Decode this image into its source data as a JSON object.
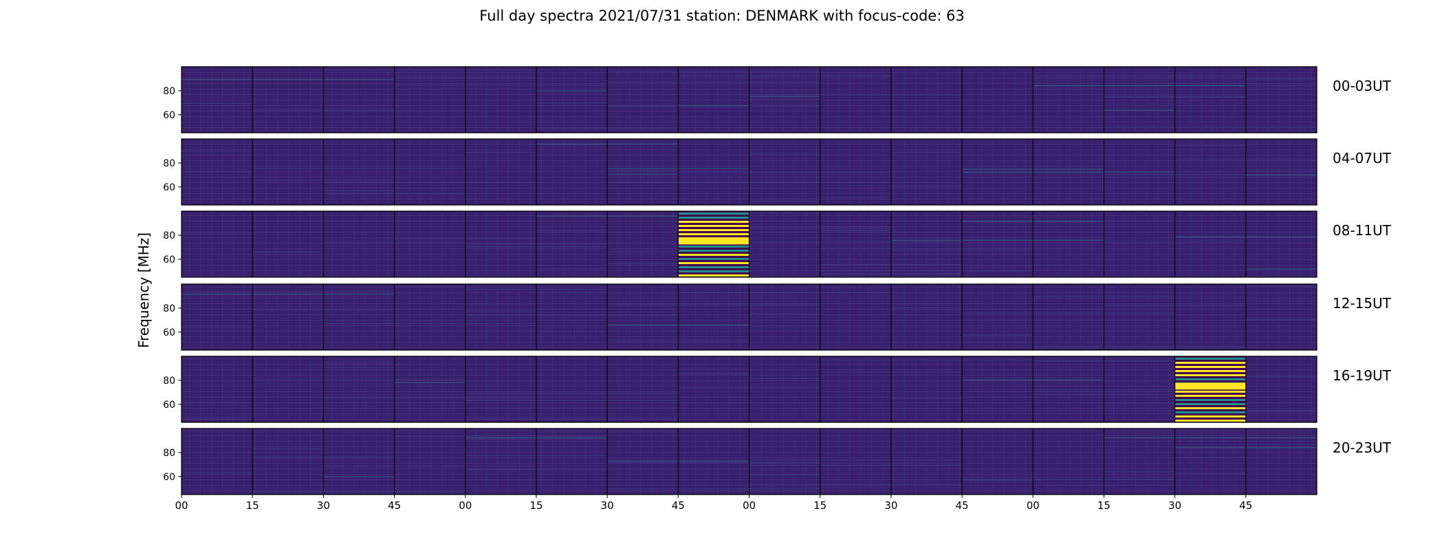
{
  "chart_data": {
    "type": "heatmap",
    "title": "Full day spectra 2021/07/31 station: DENMARK with focus-code: 63",
    "ylabel": "Frequency [MHz]",
    "xlabel": "",
    "yticks": [
      "60",
      "80"
    ],
    "ylim": [
      45,
      100
    ],
    "xticks": [
      "00",
      "15",
      "30",
      "45",
      "00",
      "15",
      "30",
      "45",
      "00",
      "15",
      "30",
      "45",
      "00",
      "15",
      "30",
      "45"
    ],
    "row_labels": [
      "00-03UT",
      "04-07UT",
      "08-11UT",
      "12-15UT",
      "16-19UT",
      "20-23UT"
    ],
    "panels_per_row": 16,
    "panel_minutes": 15,
    "colormap": "viridis",
    "background_color": "#3b1f6e",
    "highlights": [
      {
        "row": 2,
        "start_minute": 105,
        "end_minute": 120,
        "intensity": "high"
      },
      {
        "row": 4,
        "start_minute": 210,
        "end_minute": 225,
        "intensity": "high"
      }
    ],
    "colors": {
      "low": "#440154",
      "mid": "#21918c",
      "high": "#fde725",
      "border": "#000000"
    }
  }
}
